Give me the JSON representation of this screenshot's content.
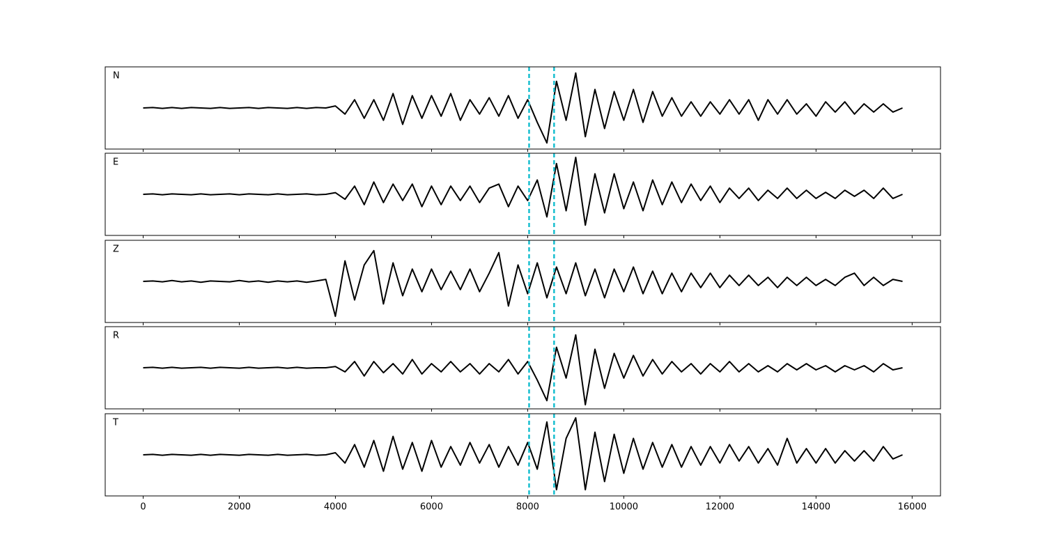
{
  "chart_data": {
    "type": "line",
    "x": [
      0,
      200,
      400,
      600,
      800,
      1000,
      1200,
      1400,
      1600,
      1800,
      2000,
      2200,
      2400,
      2600,
      2800,
      3000,
      3200,
      3400,
      3600,
      3800,
      4000,
      4200,
      4400,
      4600,
      4800,
      5000,
      5200,
      5400,
      5600,
      5800,
      6000,
      6200,
      6400,
      6600,
      6800,
      7000,
      7200,
      7400,
      7600,
      7800,
      8000,
      8200,
      8400,
      8600,
      8800,
      9000,
      9200,
      9400,
      9600,
      9800,
      10000,
      10200,
      10400,
      10600,
      10800,
      11000,
      11200,
      11400,
      11600,
      11800,
      12000,
      12200,
      12400,
      12600,
      12800,
      13000,
      13200,
      13400,
      13600,
      13800,
      14000,
      14200,
      14400,
      14600,
      14800,
      15000,
      15200,
      15400,
      15600,
      15800
    ],
    "series": [
      {
        "name": "N",
        "color": "#000000",
        "values": [
          0,
          0.01,
          -0.01,
          0.01,
          -0.01,
          0.01,
          0,
          -0.01,
          0.01,
          -0.01,
          0,
          0.01,
          -0.01,
          0.01,
          0,
          -0.01,
          0.01,
          -0.01,
          0.01,
          0,
          0.05,
          -0.15,
          0.2,
          -0.25,
          0.2,
          -0.3,
          0.35,
          -0.4,
          0.3,
          -0.25,
          0.3,
          -0.2,
          0.35,
          -0.3,
          0.2,
          -0.15,
          0.25,
          -0.2,
          0.3,
          -0.25,
          0.2,
          -0.35,
          -0.85,
          0.65,
          -0.3,
          0.85,
          -0.7,
          0.45,
          -0.5,
          0.4,
          -0.3,
          0.45,
          -0.35,
          0.4,
          -0.2,
          0.25,
          -0.2,
          0.15,
          -0.2,
          0.15,
          -0.15,
          0.2,
          -0.15,
          0.2,
          -0.3,
          0.2,
          -0.15,
          0.2,
          -0.15,
          0.1,
          -0.2,
          0.15,
          -0.1,
          0.15,
          -0.15,
          0.1,
          -0.1,
          0.1,
          -0.1,
          0
        ]
      },
      {
        "name": "E",
        "color": "#000000",
        "values": [
          0,
          0.01,
          -0.01,
          0.01,
          0,
          -0.01,
          0.01,
          -0.01,
          0,
          0.01,
          -0.01,
          0.01,
          0,
          -0.01,
          0.01,
          -0.01,
          0,
          0.01,
          -0.01,
          0,
          0.04,
          -0.12,
          0.2,
          -0.25,
          0.3,
          -0.2,
          0.25,
          -0.15,
          0.25,
          -0.3,
          0.2,
          -0.25,
          0.2,
          -0.15,
          0.2,
          -0.2,
          0.15,
          0.25,
          -0.3,
          0.2,
          -0.15,
          0.35,
          -0.55,
          0.75,
          -0.4,
          0.9,
          -0.75,
          0.5,
          -0.45,
          0.5,
          -0.35,
          0.3,
          -0.4,
          0.35,
          -0.25,
          0.3,
          -0.2,
          0.25,
          -0.15,
          0.2,
          -0.2,
          0.15,
          -0.1,
          0.15,
          -0.15,
          0.1,
          -0.1,
          0.15,
          -0.1,
          0.1,
          -0.1,
          0.05,
          -0.1,
          0.1,
          -0.05,
          0.1,
          -0.1,
          0.15,
          -0.1,
          0
        ]
      },
      {
        "name": "Z",
        "color": "#000000",
        "values": [
          0,
          0.01,
          -0.01,
          0.02,
          -0.01,
          0.01,
          -0.02,
          0.01,
          0,
          -0.01,
          0.02,
          -0.01,
          0.01,
          -0.02,
          0.01,
          -0.01,
          0.01,
          -0.02,
          0.01,
          0.05,
          -0.85,
          0.5,
          -0.45,
          0.4,
          0.75,
          -0.55,
          0.45,
          -0.35,
          0.3,
          -0.25,
          0.3,
          -0.2,
          0.25,
          -0.2,
          0.3,
          -0.25,
          0.2,
          0.7,
          -0.6,
          0.4,
          -0.3,
          0.45,
          -0.4,
          0.35,
          -0.3,
          0.45,
          -0.35,
          0.3,
          -0.4,
          0.3,
          -0.25,
          0.35,
          -0.3,
          0.25,
          -0.3,
          0.2,
          -0.25,
          0.2,
          -0.15,
          0.2,
          -0.15,
          0.15,
          -0.1,
          0.15,
          -0.1,
          0.1,
          -0.15,
          0.1,
          -0.1,
          0.1,
          -0.1,
          0.05,
          -0.1,
          0.1,
          0.2,
          -0.1,
          0.1,
          -0.1,
          0.05,
          0
        ]
      },
      {
        "name": "R",
        "color": "#000000",
        "values": [
          0,
          0.01,
          -0.01,
          0.01,
          -0.01,
          0,
          0.01,
          -0.01,
          0.01,
          0,
          -0.01,
          0.01,
          -0.01,
          0,
          0.01,
          -0.01,
          0.01,
          -0.01,
          0,
          0,
          0.03,
          -0.1,
          0.15,
          -0.2,
          0.15,
          -0.12,
          0.1,
          -0.15,
          0.2,
          -0.15,
          0.1,
          -0.1,
          0.15,
          -0.1,
          0.1,
          -0.15,
          0.1,
          -0.1,
          0.2,
          -0.15,
          0.15,
          -0.3,
          -0.8,
          0.5,
          -0.25,
          0.8,
          -0.9,
          0.45,
          -0.5,
          0.35,
          -0.25,
          0.3,
          -0.2,
          0.2,
          -0.15,
          0.15,
          -0.1,
          0.1,
          -0.15,
          0.1,
          -0.1,
          0.15,
          -0.1,
          0.1,
          -0.1,
          0.05,
          -0.1,
          0.1,
          -0.05,
          0.1,
          -0.05,
          0.05,
          -0.1,
          0.05,
          -0.05,
          0.05,
          -0.1,
          0.1,
          -0.05,
          0
        ]
      },
      {
        "name": "T",
        "color": "#000000",
        "values": [
          0,
          0.01,
          -0.01,
          0.01,
          0,
          -0.01,
          0.01,
          -0.01,
          0.01,
          0,
          -0.01,
          0.01,
          0,
          -0.01,
          0.01,
          -0.01,
          0,
          0.01,
          -0.01,
          0,
          0.05,
          -0.2,
          0.25,
          -0.3,
          0.35,
          -0.4,
          0.45,
          -0.35,
          0.3,
          -0.4,
          0.35,
          -0.3,
          0.2,
          -0.25,
          0.3,
          -0.2,
          0.25,
          -0.3,
          0.2,
          -0.25,
          0.3,
          -0.35,
          0.8,
          -0.85,
          0.4,
          0.9,
          -0.85,
          0.55,
          -0.65,
          0.5,
          -0.45,
          0.4,
          -0.35,
          0.3,
          -0.3,
          0.25,
          -0.3,
          0.2,
          -0.25,
          0.2,
          -0.2,
          0.25,
          -0.15,
          0.2,
          -0.2,
          0.15,
          -0.25,
          0.4,
          -0.2,
          0.15,
          -0.2,
          0.15,
          -0.2,
          0.1,
          -0.15,
          0.1,
          -0.15,
          0.2,
          -0.1,
          0
        ]
      }
    ],
    "vlines": [
      8030,
      8550
    ],
    "vline_color": "#17becf",
    "xlim": [
      -790,
      16590
    ],
    "xticks": [
      0,
      2000,
      4000,
      6000,
      8000,
      10000,
      12000,
      14000,
      16000
    ],
    "ylim": [
      -1,
      1
    ]
  }
}
